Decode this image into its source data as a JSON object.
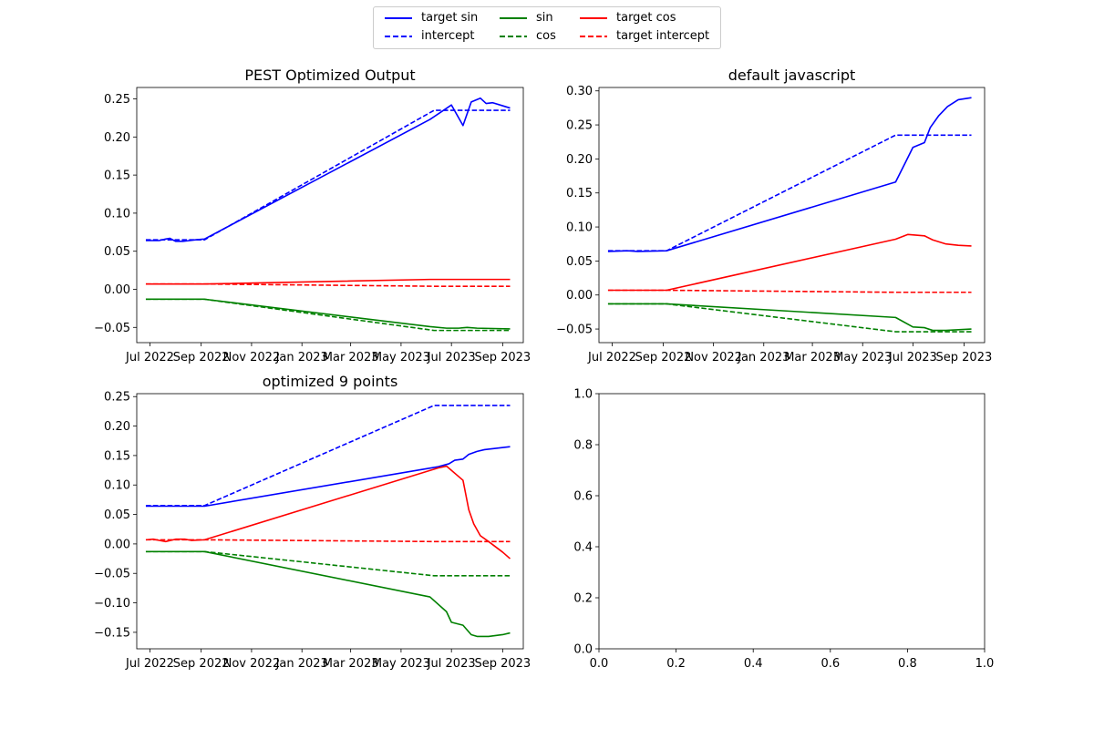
{
  "legend": {
    "placement": "top-center",
    "columns": 3,
    "items": [
      {
        "label": "target sin",
        "color": "#0000ff",
        "style": "solid"
      },
      {
        "label": "intercept",
        "color": "#0000ff",
        "style": "dashed"
      },
      {
        "label": "sin",
        "color": "#008000",
        "style": "solid"
      },
      {
        "label": "cos",
        "color": "#008000",
        "style": "dashed"
      },
      {
        "label": "target cos",
        "color": "#ff0000",
        "style": "solid"
      },
      {
        "label": "target intercept",
        "color": "#ff0000",
        "style": "dashed"
      }
    ]
  },
  "chart_data": [
    {
      "type": "line",
      "title": "PEST Optimized Output",
      "x_type": "date",
      "xlim": [
        "2022-06-15",
        "2023-09-26"
      ],
      "ylim": [
        -0.07,
        0.265
      ],
      "xticks": [
        {
          "date": "2022-07-01",
          "label": "Jul 2022"
        },
        {
          "date": "2022-09-01",
          "label": "Sep 2022"
        },
        {
          "date": "2022-11-01",
          "label": "Nov 2022"
        },
        {
          "date": "2023-01-01",
          "label": "Jan 2023"
        },
        {
          "date": "2023-03-01",
          "label": "Mar 2023"
        },
        {
          "date": "2023-05-01",
          "label": "May 2023"
        },
        {
          "date": "2023-07-01",
          "label": "Jul 2023"
        },
        {
          "date": "2023-09-01",
          "label": "Sep 2023"
        }
      ],
      "yticks": [
        -0.05,
        0.0,
        0.05,
        0.1,
        0.15,
        0.2,
        0.25
      ],
      "ytick_labels": [
        "−0.05",
        "0.00",
        "0.05",
        "0.10",
        "0.15",
        "0.20",
        "0.25"
      ],
      "series": [
        {
          "name": "target sin",
          "color": "#0000ff",
          "style": "solid",
          "x": [
            "2022-06-26",
            "2022-07-05",
            "2022-07-12",
            "2022-07-20",
            "2022-07-25",
            "2022-08-01",
            "2022-08-10",
            "2022-08-18",
            "2022-08-25",
            "2022-09-05",
            "2023-06-05",
            "2023-07-01",
            "2023-07-15",
            "2023-07-25",
            "2023-08-05",
            "2023-08-12",
            "2023-08-20",
            "2023-09-01",
            "2023-09-10"
          ],
          "y": [
            0.064,
            0.064,
            0.064,
            0.066,
            0.067,
            0.063,
            0.063,
            0.064,
            0.065,
            0.066,
            0.223,
            0.242,
            0.215,
            0.246,
            0.251,
            0.244,
            0.245,
            0.241,
            0.238
          ]
        },
        {
          "name": "intercept",
          "color": "#0000ff",
          "style": "dashed",
          "x": [
            "2022-06-26",
            "2022-09-05",
            "2023-06-10",
            "2023-09-10"
          ],
          "y": [
            0.065,
            0.065,
            0.235,
            0.235
          ]
        },
        {
          "name": "sin",
          "color": "#008000",
          "style": "solid",
          "x": [
            "2022-06-26",
            "2022-09-05",
            "2023-06-05",
            "2023-06-25",
            "2023-07-10",
            "2023-07-20",
            "2023-08-01",
            "2023-09-10"
          ],
          "y": [
            -0.013,
            -0.013,
            -0.049,
            -0.051,
            -0.051,
            -0.05,
            -0.051,
            -0.052
          ]
        },
        {
          "name": "cos",
          "color": "#008000",
          "style": "dashed",
          "x": [
            "2022-06-26",
            "2022-09-05",
            "2023-06-10",
            "2023-09-10"
          ],
          "y": [
            -0.013,
            -0.013,
            -0.054,
            -0.054
          ]
        },
        {
          "name": "target cos",
          "color": "#ff0000",
          "style": "solid",
          "x": [
            "2022-06-26",
            "2022-09-05",
            "2023-06-05",
            "2023-09-10"
          ],
          "y": [
            0.007,
            0.007,
            0.013,
            0.013
          ]
        },
        {
          "name": "target intercept",
          "color": "#ff0000",
          "style": "dashed",
          "x": [
            "2022-06-26",
            "2022-09-05",
            "2023-06-10",
            "2023-09-10"
          ],
          "y": [
            0.007,
            0.007,
            0.004,
            0.004
          ]
        }
      ]
    },
    {
      "type": "line",
      "title": "default javascript",
      "x_type": "date",
      "xlim": [
        "2022-06-15",
        "2023-09-26"
      ],
      "ylim": [
        -0.07,
        0.305
      ],
      "xticks": [
        {
          "date": "2022-07-01",
          "label": "Jul 2022"
        },
        {
          "date": "2022-09-01",
          "label": "Sep 2022"
        },
        {
          "date": "2022-11-01",
          "label": "Nov 2022"
        },
        {
          "date": "2023-01-01",
          "label": "Jan 2023"
        },
        {
          "date": "2023-03-01",
          "label": "Mar 2023"
        },
        {
          "date": "2023-05-01",
          "label": "May 2023"
        },
        {
          "date": "2023-07-01",
          "label": "Jul 2023"
        },
        {
          "date": "2023-09-01",
          "label": "Sep 2023"
        }
      ],
      "yticks": [
        -0.05,
        0.0,
        0.05,
        0.1,
        0.15,
        0.2,
        0.25,
        0.3
      ],
      "ytick_labels": [
        "−0.05",
        "0.00",
        "0.05",
        "0.10",
        "0.15",
        "0.20",
        "0.25",
        "0.30"
      ],
      "series": [
        {
          "name": "target sin",
          "color": "#0000ff",
          "style": "solid",
          "x": [
            "2022-06-26",
            "2022-07-20",
            "2022-08-01",
            "2022-09-05",
            "2023-06-10",
            "2023-06-22",
            "2023-07-01",
            "2023-07-15",
            "2023-07-22",
            "2023-08-01",
            "2023-08-12",
            "2023-08-25",
            "2023-09-10"
          ],
          "y": [
            0.064,
            0.065,
            0.064,
            0.065,
            0.166,
            0.195,
            0.217,
            0.224,
            0.246,
            0.263,
            0.277,
            0.287,
            0.29
          ]
        },
        {
          "name": "intercept",
          "color": "#0000ff",
          "style": "dashed",
          "x": [
            "2022-06-26",
            "2022-09-05",
            "2023-06-10",
            "2023-09-10"
          ],
          "y": [
            0.065,
            0.065,
            0.235,
            0.235
          ]
        },
        {
          "name": "sin",
          "color": "#008000",
          "style": "solid",
          "x": [
            "2022-06-26",
            "2022-09-05",
            "2023-06-10",
            "2023-07-01",
            "2023-07-15",
            "2023-07-25",
            "2023-08-10",
            "2023-09-10"
          ],
          "y": [
            -0.013,
            -0.013,
            -0.033,
            -0.047,
            -0.048,
            -0.052,
            -0.052,
            -0.05
          ]
        },
        {
          "name": "cos",
          "color": "#008000",
          "style": "dashed",
          "x": [
            "2022-06-26",
            "2022-09-05",
            "2023-06-10",
            "2023-09-10"
          ],
          "y": [
            -0.013,
            -0.013,
            -0.054,
            -0.054
          ]
        },
        {
          "name": "target cos",
          "color": "#ff0000",
          "style": "solid",
          "x": [
            "2022-06-26",
            "2022-09-05",
            "2023-06-10",
            "2023-06-25",
            "2023-07-15",
            "2023-07-25",
            "2023-08-10",
            "2023-08-25",
            "2023-09-10"
          ],
          "y": [
            0.007,
            0.007,
            0.082,
            0.089,
            0.087,
            0.081,
            0.075,
            0.073,
            0.072
          ]
        },
        {
          "name": "target intercept",
          "color": "#ff0000",
          "style": "dashed",
          "x": [
            "2022-06-26",
            "2022-09-05",
            "2023-06-10",
            "2023-09-10"
          ],
          "y": [
            0.007,
            0.007,
            0.004,
            0.004
          ]
        }
      ]
    },
    {
      "type": "line",
      "title": "optimized 9 points",
      "x_type": "date",
      "xlim": [
        "2022-06-15",
        "2023-09-26"
      ],
      "ylim": [
        -0.178,
        0.255
      ],
      "xticks": [
        {
          "date": "2022-07-01",
          "label": "Jul 2022"
        },
        {
          "date": "2022-09-01",
          "label": "Sep 2022"
        },
        {
          "date": "2022-11-01",
          "label": "Nov 2022"
        },
        {
          "date": "2023-01-01",
          "label": "Jan 2023"
        },
        {
          "date": "2023-03-01",
          "label": "Mar 2023"
        },
        {
          "date": "2023-05-01",
          "label": "May 2023"
        },
        {
          "date": "2023-07-01",
          "label": "Jul 2023"
        },
        {
          "date": "2023-09-01",
          "label": "Sep 2023"
        }
      ],
      "yticks": [
        -0.15,
        -0.1,
        -0.05,
        0.0,
        0.05,
        0.1,
        0.15,
        0.2,
        0.25
      ],
      "ytick_labels": [
        "−0.15",
        "−0.10",
        "−0.05",
        "0.00",
        "0.05",
        "0.10",
        "0.15",
        "0.20",
        "0.25"
      ],
      "series": [
        {
          "name": "target sin",
          "color": "#0000ff",
          "style": "solid",
          "x": [
            "2022-06-26",
            "2022-09-05",
            "2023-06-15",
            "2023-06-28",
            "2023-07-05",
            "2023-07-15",
            "2023-07-22",
            "2023-08-01",
            "2023-08-10",
            "2023-09-10"
          ],
          "y": [
            0.064,
            0.064,
            0.131,
            0.136,
            0.142,
            0.144,
            0.152,
            0.157,
            0.16,
            0.165
          ]
        },
        {
          "name": "intercept",
          "color": "#0000ff",
          "style": "dashed",
          "x": [
            "2022-06-26",
            "2022-09-05",
            "2023-06-10",
            "2023-09-10"
          ],
          "y": [
            0.065,
            0.065,
            0.235,
            0.235
          ]
        },
        {
          "name": "sin",
          "color": "#008000",
          "style": "solid",
          "x": [
            "2022-06-26",
            "2022-09-05",
            "2023-06-05",
            "2023-06-25",
            "2023-07-01",
            "2023-07-15",
            "2023-07-25",
            "2023-08-01",
            "2023-08-15",
            "2023-09-01",
            "2023-09-10"
          ],
          "y": [
            -0.013,
            -0.013,
            -0.09,
            -0.115,
            -0.133,
            -0.138,
            -0.154,
            -0.157,
            -0.157,
            -0.154,
            -0.151
          ]
        },
        {
          "name": "cos",
          "color": "#008000",
          "style": "dashed",
          "x": [
            "2022-06-26",
            "2022-09-05",
            "2023-06-10",
            "2023-09-10"
          ],
          "y": [
            -0.013,
            -0.013,
            -0.054,
            -0.054
          ]
        },
        {
          "name": "target cos",
          "color": "#ff0000",
          "style": "solid",
          "x": [
            "2022-06-26",
            "2022-07-05",
            "2022-07-12",
            "2022-07-20",
            "2022-08-01",
            "2022-08-12",
            "2022-08-20",
            "2022-09-05",
            "2023-06-15",
            "2023-06-25",
            "2023-07-15",
            "2023-07-22",
            "2023-07-28",
            "2023-08-05",
            "2023-08-15",
            "2023-09-01",
            "2023-09-10"
          ],
          "y": [
            0.007,
            0.008,
            0.006,
            0.004,
            0.008,
            0.008,
            0.006,
            0.007,
            0.129,
            0.132,
            0.108,
            0.058,
            0.034,
            0.014,
            0.004,
            -0.014,
            -0.025
          ]
        },
        {
          "name": "target intercept",
          "color": "#ff0000",
          "style": "dashed",
          "x": [
            "2022-06-26",
            "2022-09-05",
            "2023-06-10",
            "2023-09-10"
          ],
          "y": [
            0.007,
            0.007,
            0.004,
            0.004
          ]
        }
      ]
    },
    {
      "type": "line",
      "title": "",
      "x_type": "number",
      "xlim": [
        0,
        1
      ],
      "ylim": [
        0,
        1
      ],
      "xticks": [
        {
          "value": 0.0,
          "label": "0.0"
        },
        {
          "value": 0.2,
          "label": "0.2"
        },
        {
          "value": 0.4,
          "label": "0.4"
        },
        {
          "value": 0.6,
          "label": "0.6"
        },
        {
          "value": 0.8,
          "label": "0.8"
        },
        {
          "value": 1.0,
          "label": "1.0"
        }
      ],
      "yticks": [
        0.0,
        0.2,
        0.4,
        0.6,
        0.8,
        1.0
      ],
      "ytick_labels": [
        "0.0",
        "0.2",
        "0.4",
        "0.6",
        "0.8",
        "1.0"
      ],
      "series": []
    }
  ]
}
